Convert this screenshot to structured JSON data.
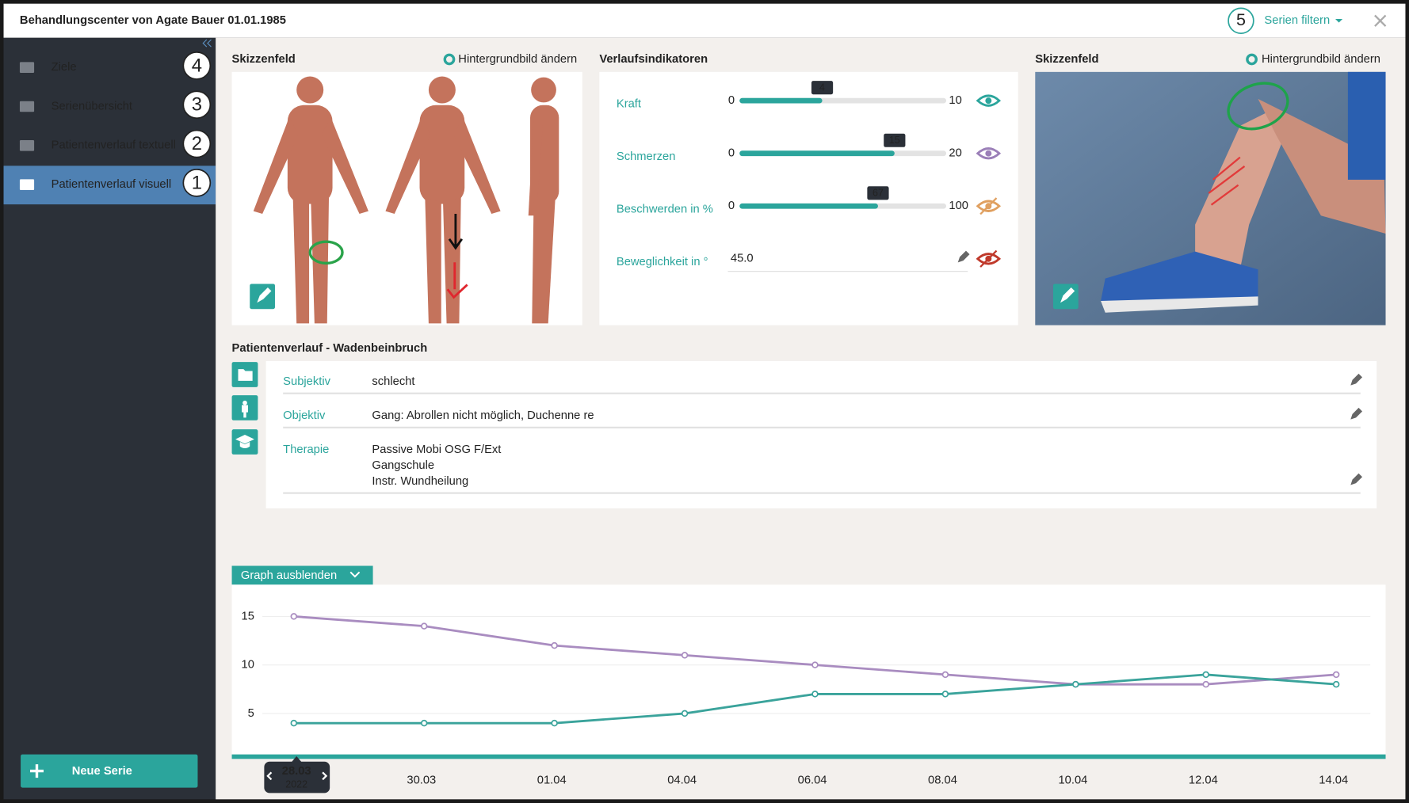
{
  "header": {
    "title": "Behandlungscenter von Agate Bauer 01.01.1985",
    "badge": 5,
    "filter": "Serien filtern"
  },
  "sidebar": {
    "items": [
      {
        "label": "Ziele",
        "badge": 4
      },
      {
        "label": "Serienübersicht",
        "badge": 3
      },
      {
        "label": "Patientenverlauf textuell",
        "badge": 2
      },
      {
        "label": "Patientenverlauf visuell",
        "badge": 1
      }
    ],
    "active": 3,
    "new_button": "Neue Serie"
  },
  "sketch_left": {
    "title": "Skizzenfeld",
    "action": "Hintergrundbild ändern"
  },
  "sketch_right": {
    "title": "Skizzenfeld",
    "action": "Hintergrundbild ändern"
  },
  "indicators": {
    "title": "Verlaufsindikatoren",
    "items": [
      {
        "label": "Kraft",
        "min": 0,
        "max": 10,
        "value": 4,
        "eye_color": "#2ba59c",
        "visible": true
      },
      {
        "label": "Schmerzen",
        "min": 0,
        "max": 20,
        "value": 15,
        "eye_color": "#9b7fb8",
        "visible": true
      },
      {
        "label": "Beschwerden in %",
        "min": 0,
        "max": 100,
        "value": 67,
        "eye_color": "#e0a060",
        "visible": false
      },
      {
        "label": "Beweglichkeit in °",
        "input": "45.0",
        "eye_color": "#c0392b",
        "visible": false
      }
    ]
  },
  "course": {
    "title": "Patientenverlauf - Wadenbeinbruch",
    "rows": [
      {
        "label": "Subjektiv",
        "lines": [
          "schlecht"
        ]
      },
      {
        "label": "Objektiv",
        "lines": [
          "Gang: Abrollen nicht möglich, Duchenne re"
        ]
      },
      {
        "label": "Therapie",
        "lines": [
          "Passive Mobi OSG F/Ext",
          "Gangschule",
          "Instr. Wundheilung"
        ]
      }
    ]
  },
  "graph_toggle": "Graph ausblenden",
  "chart_data": {
    "type": "line",
    "categories": [
      "28.03",
      "30.03",
      "01.04",
      "04.04",
      "06.04",
      "08.04",
      "10.04",
      "12.04",
      "14.04"
    ],
    "selected": 0,
    "selected_year": "2022",
    "series": [
      {
        "color": "#a98cc0",
        "values": [
          15,
          14,
          12,
          11,
          10,
          9,
          8,
          8,
          9
        ]
      },
      {
        "color": "#3aa39b",
        "values": [
          4,
          4,
          4,
          5,
          7,
          7,
          8,
          9,
          8
        ]
      }
    ],
    "ylim": [
      0.5,
      17.9
    ],
    "yticks": [
      5,
      10,
      15
    ],
    "grid": true
  }
}
